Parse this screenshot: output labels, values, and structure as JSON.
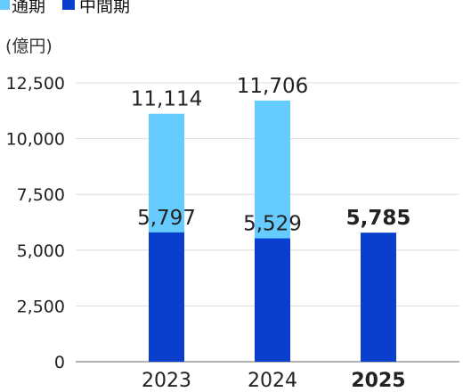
{
  "chart_data": {
    "type": "bar",
    "stacked": "overlay",
    "unit_label": "(億円)",
    "categories": [
      "2023",
      "2024",
      "2025"
    ],
    "highlight_category": "2025",
    "series": [
      {
        "name": "通期",
        "color": "#66ccff",
        "values": [
          11114,
          11706,
          null
        ],
        "labels": [
          "11,114",
          "11,706",
          ""
        ]
      },
      {
        "name": "中間期",
        "color": "#0a3fce",
        "values": [
          5797,
          5529,
          5785
        ],
        "labels": [
          "5,797",
          "5,529",
          "5,785"
        ]
      }
    ],
    "y_ticks": [
      "0",
      "2,500",
      "5,000",
      "7,500",
      "10,000",
      "12,500"
    ],
    "ylim": [
      0,
      12500
    ],
    "grid": true,
    "legend_position": "top-left"
  }
}
